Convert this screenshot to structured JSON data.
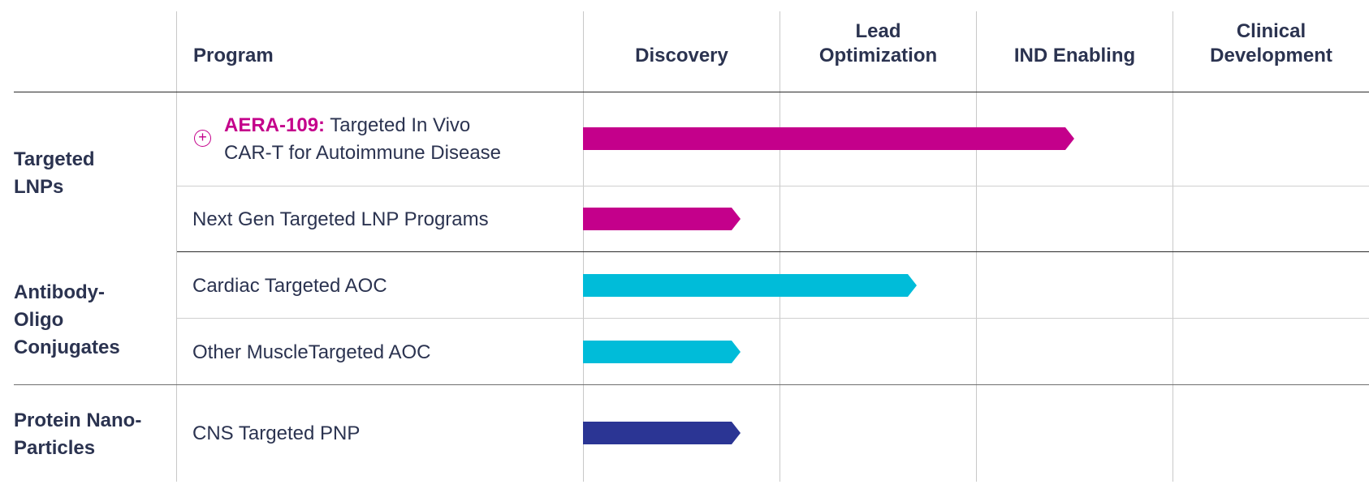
{
  "header": {
    "program": "Program",
    "phases": [
      "Discovery",
      "Lead\nOptimization",
      "IND Enabling",
      "Clinical\nDevelopment"
    ]
  },
  "groups": [
    {
      "label": "Targeted\nLNPs"
    },
    {
      "label": "Antibody-\nOligo\nConjugates"
    },
    {
      "label": "Protein Nano-\nParticles"
    }
  ],
  "programs": [
    {
      "code": "AERA-109:",
      "name": " Targeted In Vivo",
      "name2": "CAR-T for Autoimmune Disease",
      "color": "#c4008b",
      "progress_phases": 2.5,
      "expand_icon": "plus-circle-icon"
    },
    {
      "name": "Next Gen Targeted LNP Programs",
      "color": "#c4008b",
      "progress_phases": 0.8
    },
    {
      "name": "Cardiac Targeted AOC",
      "color": "#00bcd9",
      "progress_phases": 1.7
    },
    {
      "name": "Other MuscleTargeted AOC",
      "color": "#00bcd9",
      "progress_phases": 0.8
    },
    {
      "name": "CNS Targeted PNP",
      "color": "#2b3594",
      "progress_phases": 0.8
    }
  ]
}
